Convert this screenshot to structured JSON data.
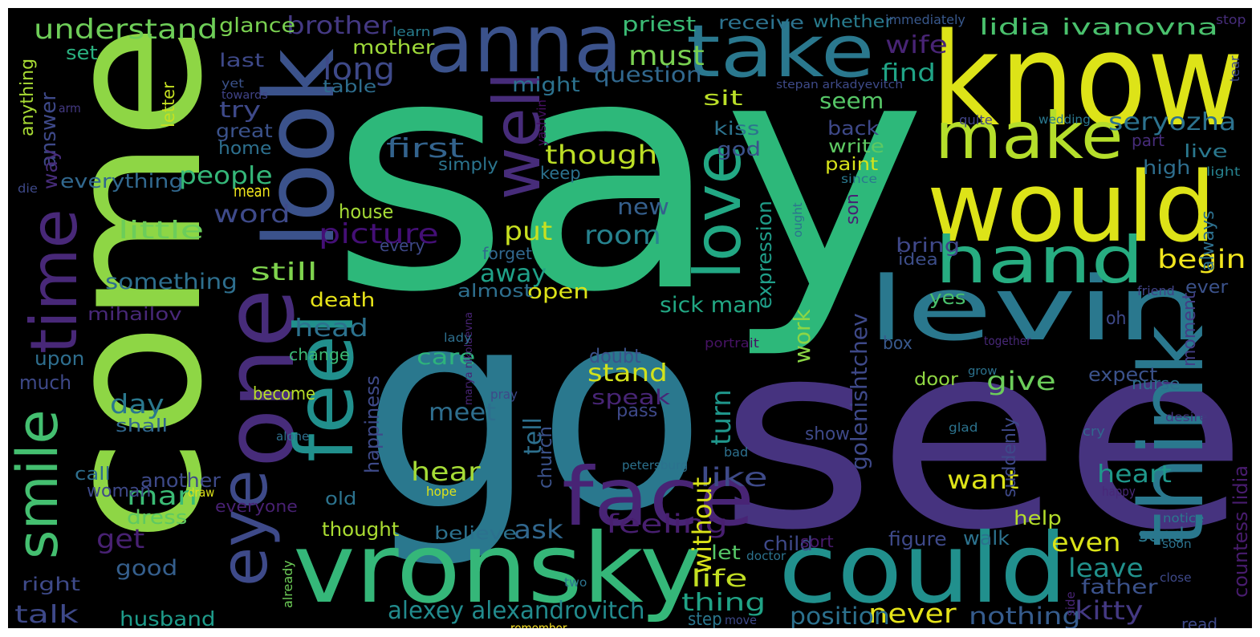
{
  "words": [
    {
      "t": "say",
      "c": "#2db87a"
    },
    {
      "t": "go",
      "c": "#2a788e"
    },
    {
      "t": "see",
      "c": "#46337f"
    },
    {
      "t": "come",
      "c": "#8ed645"
    },
    {
      "t": "know",
      "c": "#dde318"
    },
    {
      "t": "anna",
      "c": "#3b528b"
    },
    {
      "t": "take",
      "c": "#2a788e"
    },
    {
      "t": "would",
      "c": "#dde318"
    },
    {
      "t": "levin",
      "c": "#2a788e"
    },
    {
      "t": "make",
      "c": "#b5de2b"
    },
    {
      "t": "hand",
      "c": "#27ad81"
    },
    {
      "t": "one",
      "c": "#472c7a"
    },
    {
      "t": "look",
      "c": "#3b528b"
    },
    {
      "t": "think",
      "c": "#2a788e"
    },
    {
      "t": "could",
      "c": "#21908d"
    },
    {
      "t": "vronsky",
      "c": "#35b779"
    },
    {
      "t": "face",
      "c": "#482475"
    },
    {
      "t": "feel",
      "c": "#21908d"
    },
    {
      "t": "well",
      "c": "#472c7a"
    },
    {
      "t": "love",
      "c": "#22a884"
    },
    {
      "t": "eye",
      "c": "#3e4a89"
    },
    {
      "t": "time",
      "c": "#482878"
    },
    {
      "t": "smile",
      "c": "#44bf70"
    },
    {
      "t": "understand",
      "c": "#6ece58"
    },
    {
      "t": "brother",
      "c": "#443983"
    },
    {
      "t": "lidia ivanovna",
      "c": "#4ac16d"
    },
    {
      "t": "long",
      "c": "#3e4989"
    },
    {
      "t": "must",
      "c": "#7ad151"
    },
    {
      "t": "wife",
      "c": "#482475"
    },
    {
      "t": "question",
      "c": "#31688e"
    },
    {
      "t": "find",
      "c": "#20a486"
    },
    {
      "t": "seryozha",
      "c": "#2c728e"
    },
    {
      "t": "seem",
      "c": "#56c667"
    },
    {
      "t": "first",
      "c": "#33638d"
    },
    {
      "t": "though",
      "c": "#bddf26"
    },
    {
      "t": "alexey alexandrovitch",
      "c": "#228b8d"
    },
    {
      "t": "picture",
      "c": "#440f76"
    },
    {
      "t": "little",
      "c": "#6ccd5a"
    },
    {
      "t": "still",
      "c": "#7fd34e"
    },
    {
      "t": "something",
      "c": "#2e6f8e"
    },
    {
      "t": "people",
      "c": "#35b779"
    },
    {
      "t": "word",
      "c": "#3e4a89"
    },
    {
      "t": "room",
      "c": "#26828e"
    },
    {
      "t": "new",
      "c": "#355f8d"
    },
    {
      "t": "put",
      "c": "#c8e020"
    },
    {
      "t": "away",
      "c": "#1fa188"
    },
    {
      "t": "begin",
      "c": "#f1e51d"
    },
    {
      "t": "expression",
      "c": "#1f9e89"
    },
    {
      "t": "golenishtchev",
      "c": "#3e4989"
    },
    {
      "t": "countess lidia",
      "c": "#481c6e"
    },
    {
      "t": "mihailov",
      "c": "#482878"
    },
    {
      "t": "head",
      "c": "#2c728e"
    },
    {
      "t": "day",
      "c": "#2a788e"
    },
    {
      "t": "talk",
      "c": "#3e4989"
    },
    {
      "t": "husband",
      "c": "#1e9b8a"
    },
    {
      "t": "man",
      "c": "#3bbb75"
    },
    {
      "t": "get",
      "c": "#482173"
    },
    {
      "t": "good",
      "c": "#355f8d"
    },
    {
      "t": "hear",
      "c": "#a5db36"
    },
    {
      "t": "meet",
      "c": "#2e6e8e"
    },
    {
      "t": "tell",
      "c": "#2d708e"
    },
    {
      "t": "feeling",
      "c": "#481f70"
    },
    {
      "t": "ask",
      "c": "#31678e"
    },
    {
      "t": "like",
      "c": "#3e4a89"
    },
    {
      "t": "life",
      "c": "#c2df23"
    },
    {
      "t": "thing",
      "c": "#20a386"
    },
    {
      "t": "turn",
      "c": "#1f968b"
    },
    {
      "t": "without",
      "c": "#dae319"
    },
    {
      "t": "stand",
      "c": "#d2e21b"
    },
    {
      "t": "care",
      "c": "#2eb37c"
    },
    {
      "t": "speak",
      "c": "#482576"
    },
    {
      "t": "work",
      "c": "#8bd646"
    },
    {
      "t": "give",
      "c": "#6ccd5a"
    },
    {
      "t": "want",
      "c": "#dde318"
    },
    {
      "t": "heart",
      "c": "#1f988b"
    },
    {
      "t": "even",
      "c": "#dae319"
    },
    {
      "t": "leave",
      "c": "#21918c"
    },
    {
      "t": "kitty",
      "c": "#443983"
    },
    {
      "t": "never",
      "c": "#e5e419"
    },
    {
      "t": "nothing",
      "c": "#365c8d"
    },
    {
      "t": "position",
      "c": "#2c718e"
    },
    {
      "t": "father",
      "c": "#3b528b"
    },
    {
      "t": "sick man",
      "c": "#22a884"
    },
    {
      "t": "death",
      "c": "#e7e419"
    },
    {
      "t": "open",
      "c": "#dde318"
    },
    {
      "t": "almost",
      "c": "#2e6f8e"
    },
    {
      "t": "mother",
      "c": "#9fda3a"
    },
    {
      "t": "priest",
      "c": "#3bbb75"
    },
    {
      "t": "receive",
      "c": "#2c728e"
    },
    {
      "t": "whether",
      "c": "#287c8e"
    },
    {
      "t": "immediately",
      "c": "#38588c"
    },
    {
      "t": "learn",
      "c": "#287d8e"
    },
    {
      "t": "stop",
      "c": "#472d7b"
    },
    {
      "t": "glance",
      "c": "#7ad151"
    },
    {
      "t": "set",
      "c": "#2ab07f"
    },
    {
      "t": "last",
      "c": "#3e4989"
    },
    {
      "t": "might",
      "c": "#2c728e"
    },
    {
      "t": "table",
      "c": "#2e6e8e"
    },
    {
      "t": "yet",
      "c": "#3b528b"
    },
    {
      "t": "towards",
      "c": "#404387"
    },
    {
      "t": "stepan arkadyevitch",
      "c": "#3e4a89"
    },
    {
      "t": "anything",
      "c": "#a8db34"
    },
    {
      "t": "answer",
      "c": "#3e4989"
    },
    {
      "t": "way",
      "c": "#472c7a"
    },
    {
      "t": "arm",
      "c": "#443983"
    },
    {
      "t": "letter",
      "c": "#c5e021"
    },
    {
      "t": "yashvin",
      "c": "#471063"
    },
    {
      "t": "sit",
      "c": "#bade28"
    },
    {
      "t": "try",
      "c": "#3e4989"
    },
    {
      "t": "great",
      "c": "#3b528b"
    },
    {
      "t": "home",
      "c": "#2d708e"
    },
    {
      "t": "everything",
      "c": "#31688e"
    },
    {
      "t": "simply",
      "c": "#2b758e"
    },
    {
      "t": "keep",
      "c": "#2c718e"
    },
    {
      "t": "kiss",
      "c": "#2c738e"
    },
    {
      "t": "god",
      "c": "#3b528b"
    },
    {
      "t": "back",
      "c": "#3e4989"
    },
    {
      "t": "write",
      "c": "#5ec962"
    },
    {
      "t": "paint",
      "c": "#d5e21a"
    },
    {
      "t": "since",
      "c": "#2a788e"
    },
    {
      "t": "son",
      "c": "#482173"
    },
    {
      "t": "quite",
      "c": "#414487"
    },
    {
      "t": "wedding",
      "c": "#2a788e"
    },
    {
      "t": "part",
      "c": "#472c7a"
    },
    {
      "t": "high",
      "c": "#2e6e8e"
    },
    {
      "t": "live",
      "c": "#2a788e"
    },
    {
      "t": "light",
      "c": "#26818e"
    },
    {
      "t": "tear",
      "c": "#3e4989"
    },
    {
      "t": "always",
      "c": "#2d708e"
    },
    {
      "t": "die",
      "c": "#3e4989"
    },
    {
      "t": "mean",
      "c": "#efe51c"
    },
    {
      "t": "house",
      "c": "#a5db36"
    },
    {
      "t": "every",
      "c": "#3e4989"
    },
    {
      "t": "forget",
      "c": "#31688e"
    },
    {
      "t": "ought",
      "c": "#2c728e"
    },
    {
      "t": "bring",
      "c": "#3f4889"
    },
    {
      "t": "idea",
      "c": "#3d4e8a"
    },
    {
      "t": "friend",
      "c": "#404387"
    },
    {
      "t": "ever",
      "c": "#3b528b"
    },
    {
      "t": "yes",
      "c": "#4ac16d"
    },
    {
      "t": "oh",
      "c": "#3e4989"
    },
    {
      "t": "moment",
      "c": "#433e85"
    },
    {
      "t": "box",
      "c": "#38588c"
    },
    {
      "t": "together",
      "c": "#482878"
    },
    {
      "t": "much",
      "c": "#3e4989"
    },
    {
      "t": "upon",
      "c": "#2e6e8e"
    },
    {
      "t": "shall",
      "c": "#31688e"
    },
    {
      "t": "change",
      "c": "#3bbb75"
    },
    {
      "t": "doubt",
      "c": "#3b528b"
    },
    {
      "t": "happiness",
      "c": "#3e4a89"
    },
    {
      "t": "marya nikolaevna",
      "c": "#482475"
    },
    {
      "t": "become",
      "c": "#b8de29"
    },
    {
      "t": "pray",
      "c": "#3e4989"
    },
    {
      "t": "pass",
      "c": "#3e4989"
    },
    {
      "t": "lady",
      "c": "#2e6f8e"
    },
    {
      "t": "portrait",
      "c": "#471365"
    },
    {
      "t": "door",
      "c": "#90d743"
    },
    {
      "t": "grow",
      "c": "#2c728e"
    },
    {
      "t": "expect",
      "c": "#3b528b"
    },
    {
      "t": "nurse",
      "c": "#2e6e8e"
    },
    {
      "t": "alone",
      "c": "#2e6f8e"
    },
    {
      "t": "church",
      "c": "#3b528b"
    },
    {
      "t": "another",
      "c": "#3e4a89"
    },
    {
      "t": "call",
      "c": "#2e6f8e"
    },
    {
      "t": "woman",
      "c": "#3e4989"
    },
    {
      "t": "dress",
      "c": "#5ec962"
    },
    {
      "t": "old",
      "c": "#2c738e"
    },
    {
      "t": "everyone",
      "c": "#482173"
    },
    {
      "t": "thought",
      "c": "#aadc32"
    },
    {
      "t": "believe",
      "c": "#2c718e"
    },
    {
      "t": "let",
      "c": "#56c667"
    },
    {
      "t": "step",
      "c": "#2a768e"
    },
    {
      "t": "move",
      "c": "#3e4989"
    },
    {
      "t": "remember",
      "c": "#fde725"
    },
    {
      "t": "draw",
      "c": "#dde318"
    },
    {
      "t": "hope",
      "c": "#dde318"
    },
    {
      "t": "petersburg",
      "c": "#2c728e"
    },
    {
      "t": "bad",
      "c": "#2d708e"
    },
    {
      "t": "show",
      "c": "#3e4989"
    },
    {
      "t": "glad",
      "c": "#2c738e"
    },
    {
      "t": "suddenly",
      "c": "#3e4989"
    },
    {
      "t": "cry",
      "c": "#31688e"
    },
    {
      "t": "desire",
      "c": "#453781"
    },
    {
      "t": "happy",
      "c": "#482878"
    },
    {
      "t": "notice",
      "c": "#2a788e"
    },
    {
      "t": "soon",
      "c": "#2c728e"
    },
    {
      "t": "close",
      "c": "#3e4989"
    },
    {
      "t": "read",
      "c": "#3e4989"
    },
    {
      "t": "side",
      "c": "#482475"
    },
    {
      "t": "help",
      "c": "#b5de2b"
    },
    {
      "t": "figure",
      "c": "#3e4989"
    },
    {
      "t": "walk",
      "c": "#2c728e"
    },
    {
      "t": "send",
      "c": "#2a788e"
    },
    {
      "t": "child",
      "c": "#3e4989"
    },
    {
      "t": "sort",
      "c": "#481a6c"
    },
    {
      "t": "doctor",
      "c": "#2c728e"
    },
    {
      "t": "two",
      "c": "#2c728e"
    },
    {
      "t": "already",
      "c": "#6ece58"
    },
    {
      "t": "right",
      "c": "#3e4a89"
    }
  ]
}
